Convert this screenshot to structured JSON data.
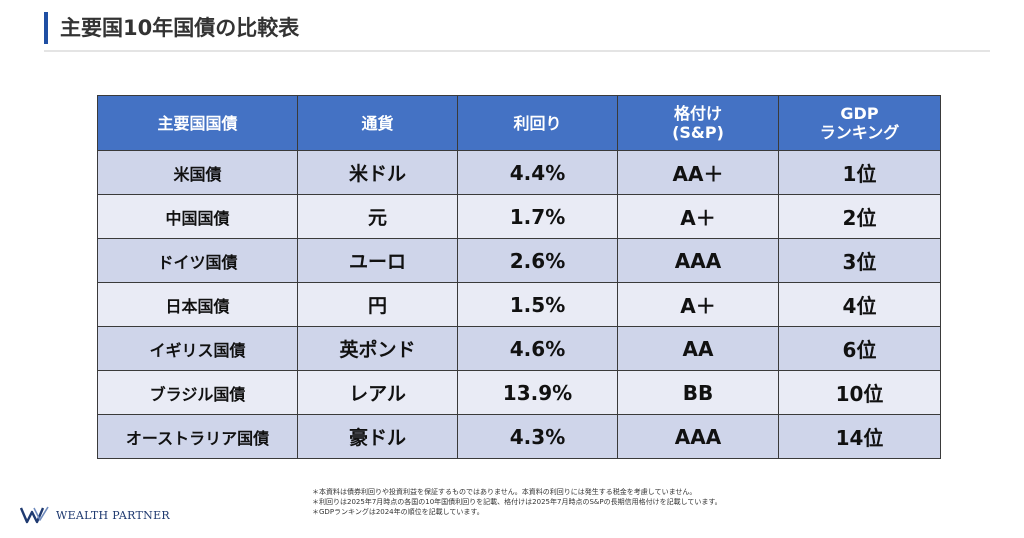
{
  "title": "主要国10年国債の比較表",
  "table": {
    "headers": [
      {
        "line1": "主要国国債",
        "line2": ""
      },
      {
        "line1": "通貨",
        "line2": ""
      },
      {
        "line1": "利回り",
        "line2": ""
      },
      {
        "line1": "格付け",
        "line2": "(S&P)"
      },
      {
        "line1": "GDP",
        "line2": "ランキング"
      }
    ],
    "rows": [
      {
        "name": "米国債",
        "currency": "米ドル",
        "yield": "4.4%",
        "rating": "AA＋",
        "rank": "1位"
      },
      {
        "name": "中国国債",
        "currency": "元",
        "yield": "1.7%",
        "rating": "A＋",
        "rank": "2位"
      },
      {
        "name": "ドイツ国債",
        "currency": "ユーロ",
        "yield": "2.6%",
        "rating": "AAA",
        "rank": "3位"
      },
      {
        "name": "日本国債",
        "currency": "円",
        "yield": "1.5%",
        "rating": "A＋",
        "rank": "4位"
      },
      {
        "name": "イギリス国債",
        "currency": "英ポンド",
        "yield": "4.6%",
        "rating": "AA",
        "rank": "6位"
      },
      {
        "name": "ブラジル国債",
        "currency": "レアル",
        "yield": "13.9%",
        "rating": "BB",
        "rank": "10位"
      },
      {
        "name": "オーストラリア国債",
        "currency": "豪ドル",
        "yield": "4.3%",
        "rating": "AAA",
        "rank": "14位"
      }
    ]
  },
  "notes": [
    "＊本資料は債券利回りや投資利益を保証するものではありません。本資料の利回りには発生する税金を考慮していません。",
    "＊利回りは2025年7月時点の各国の10年国債利回りを記載、格付けは2025年7月時点のS&Pの長期信用格付けを記載しています。",
    "＊GDPランキングは2024年の順位を記載しています。"
  ],
  "logo": {
    "text": "WEALTH PARTNER",
    "icon": "wealth-partner-w-logo-icon",
    "color": "#1f3a70"
  },
  "colors": {
    "header": "#4472c4",
    "row_odd": "#cfd5ea",
    "row_even": "#e9ebf5",
    "accent": "#1f4fa3"
  }
}
